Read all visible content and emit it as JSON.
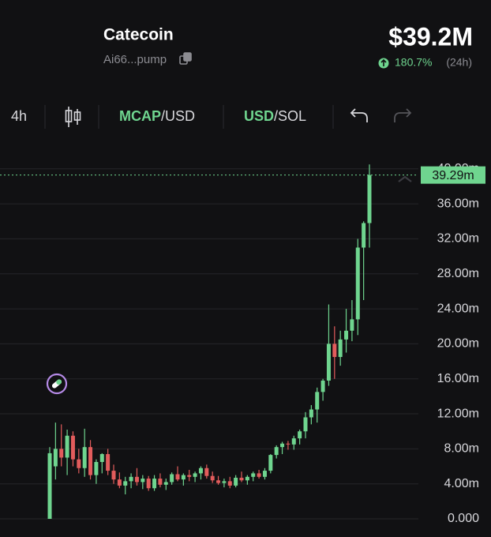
{
  "header": {
    "name": "Catecoin",
    "address": "Ai66...pump",
    "market_cap": "$39.2M",
    "change": "180.7%",
    "period": "(24h)"
  },
  "toolbar": {
    "interval": "4h",
    "metric_main": "MCAP",
    "metric_unit": "/USD",
    "currency_main": "USD",
    "currency_alt": "/SOL"
  },
  "chart_data": {
    "type": "candlestick",
    "up_color": "#6fd58f",
    "down_color": "#e25c5c",
    "grid": true,
    "ylim": [
      -1,
      41
    ],
    "yticks": [
      {
        "value": 0,
        "label": "0.000"
      },
      {
        "value": 4,
        "label": "4.00m"
      },
      {
        "value": 8,
        "label": "8.00m"
      },
      {
        "value": 12,
        "label": "12.00m"
      },
      {
        "value": 16,
        "label": "16.00m"
      },
      {
        "value": 20,
        "label": "20.00m"
      },
      {
        "value": 24,
        "label": "24.00m"
      },
      {
        "value": 28,
        "label": "28.00m"
      },
      {
        "value": 32,
        "label": "32.00m"
      },
      {
        "value": 36,
        "label": "36.00m"
      },
      {
        "value": 40,
        "label": "40.00m"
      }
    ],
    "current_price": {
      "value": 39.29,
      "label": "39.29m"
    },
    "open": [
      0.0,
      6.0,
      8.0,
      7.0,
      9.5,
      6.8,
      5.8,
      8.2,
      5.0,
      6.5,
      7.4,
      5.5,
      4.5,
      3.8,
      4.3,
      4.8,
      4.2,
      4.6,
      3.5,
      4.6,
      3.9,
      4.2,
      5.1,
      4.5,
      5.0,
      4.8,
      5.2,
      5.8,
      4.9,
      4.4,
      4.1,
      4.3,
      3.8,
      4.7,
      4.4,
      4.8,
      5.2,
      4.8,
      5.5,
      7.3,
      8.2,
      8.6,
      8.5,
      9.2,
      10.0,
      11.6,
      12.5,
      14.5,
      15.8,
      20.0,
      18.5,
      20.5,
      21.5,
      22.8,
      31.0,
      33.8
    ],
    "high": [
      8.2,
      11.0,
      10.8,
      10.2,
      10.0,
      8.0,
      10.3,
      9.0,
      6.8,
      7.5,
      8.0,
      6.2,
      5.3,
      4.8,
      5.2,
      5.8,
      5.0,
      4.9,
      5.0,
      5.2,
      4.6,
      5.3,
      6.0,
      5.2,
      5.6,
      5.4,
      6.0,
      6.2,
      5.4,
      4.9,
      4.6,
      4.8,
      5.0,
      5.4,
      5.0,
      5.4,
      5.6,
      5.8,
      7.4,
      8.4,
      8.8,
      8.9,
      9.5,
      10.2,
      12.2,
      13.0,
      15.0,
      16.0,
      24.5,
      22.0,
      21.5,
      24.0,
      25.0,
      32.0,
      34.0,
      40.5
    ],
    "low": [
      0.0,
      4.5,
      6.0,
      5.0,
      6.0,
      5.2,
      4.8,
      4.5,
      4.0,
      5.2,
      5.0,
      4.0,
      3.5,
      2.8,
      3.5,
      3.8,
      3.4,
      3.2,
      3.2,
      3.6,
      3.3,
      3.9,
      4.3,
      3.8,
      4.3,
      4.2,
      4.5,
      4.6,
      4.1,
      3.9,
      3.6,
      3.5,
      3.6,
      4.2,
      3.9,
      4.3,
      4.6,
      4.5,
      5.2,
      6.9,
      7.4,
      7.9,
      7.9,
      8.5,
      9.2,
      10.8,
      11.0,
      13.5,
      15.2,
      16.0,
      17.5,
      19.0,
      20.3,
      21.0,
      25.0,
      31.0
    ],
    "close": [
      7.5,
      8.0,
      7.0,
      9.5,
      6.8,
      5.8,
      8.2,
      5.0,
      6.5,
      7.4,
      5.5,
      4.5,
      3.8,
      4.3,
      4.8,
      4.2,
      4.6,
      3.5,
      4.6,
      3.9,
      4.2,
      5.1,
      4.5,
      5.0,
      4.8,
      5.2,
      5.8,
      4.9,
      4.4,
      4.1,
      4.3,
      3.8,
      4.7,
      4.4,
      4.8,
      5.2,
      4.8,
      5.5,
      7.3,
      8.2,
      8.6,
      8.5,
      9.2,
      10.0,
      11.6,
      12.5,
      14.5,
      15.8,
      20.0,
      18.5,
      20.5,
      21.5,
      22.8,
      31.0,
      33.8,
      39.29
    ]
  }
}
